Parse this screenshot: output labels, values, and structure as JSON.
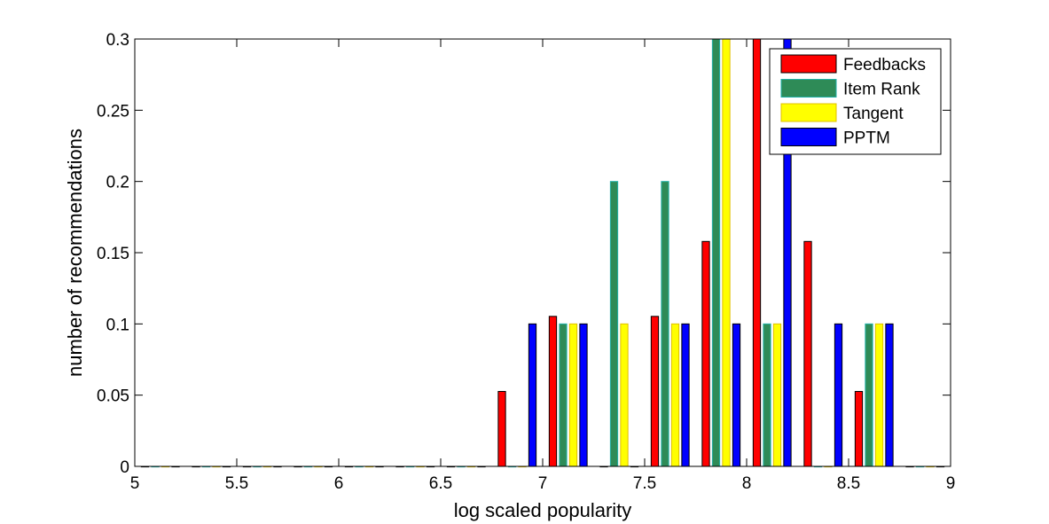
{
  "chart_data": {
    "type": "bar",
    "xlabel": "log scaled popularity",
    "ylabel": "number of recommendations",
    "xlim": [
      5,
      9
    ],
    "ylim": [
      0,
      0.3
    ],
    "xticks": [
      "5",
      "5.5",
      "6",
      "6.5",
      "7",
      "7.5",
      "8",
      "8.5",
      "9"
    ],
    "yticks": [
      "0",
      "0.05",
      "0.1",
      "0.15",
      "0.2",
      "0.25",
      "0.3"
    ],
    "x": [
      5.125,
      5.375,
      5.625,
      5.875,
      6.125,
      6.375,
      6.625,
      6.875,
      7.125,
      7.375,
      7.625,
      7.875,
      8.125,
      8.375,
      8.625,
      8.875
    ],
    "series": [
      {
        "name": "Feedbacks",
        "color": "#ff0000",
        "values": [
          0,
          0,
          0,
          0,
          0,
          0,
          0,
          0.0526,
          0.1053,
          0,
          0.1053,
          0.1579,
          0.3,
          0.1579,
          0.0526,
          0
        ]
      },
      {
        "name": "Item Rank",
        "color": "#2e8b57",
        "values": [
          0,
          0,
          0,
          0,
          0,
          0,
          0,
          0,
          0.1,
          0.2,
          0.2,
          0.3,
          0.1,
          0,
          0.1,
          0
        ]
      },
      {
        "name": "Tangent",
        "color": "#ffff00",
        "values": [
          0,
          0,
          0,
          0,
          0,
          0,
          0,
          0,
          0.1,
          0.1,
          0.1,
          0.3,
          0.1,
          0,
          0.1,
          0
        ]
      },
      {
        "name": "PPTM",
        "color": "#0000ff",
        "values": [
          0,
          0,
          0,
          0,
          0,
          0,
          0,
          0.1,
          0.1,
          0,
          0.1,
          0.1,
          0.3,
          0.1,
          0.1,
          0
        ]
      }
    ],
    "legend_position": "top-right",
    "grid": false,
    "edge_colors": {
      "Feedbacks": "#000000",
      "Item Rank": "#20b2aa",
      "Tangent": "#e0c000",
      "PPTM": "#000000"
    }
  }
}
